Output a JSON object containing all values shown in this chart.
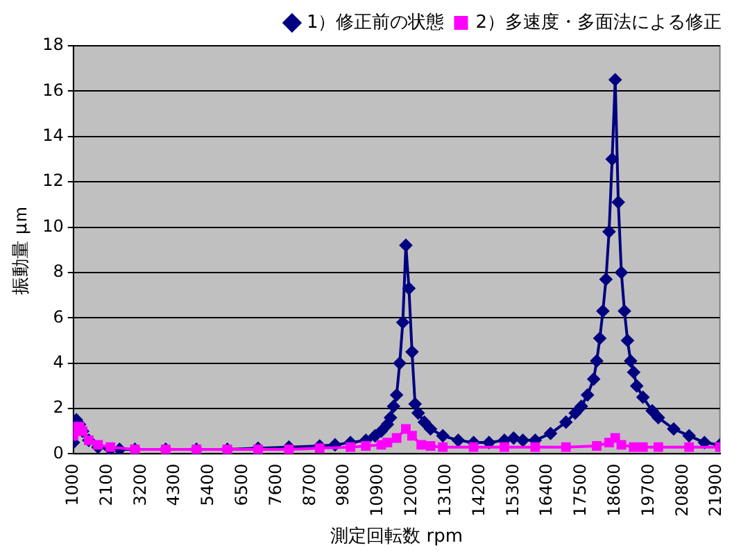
{
  "chart_data": {
    "type": "line",
    "xlabel": "測定回転数 rpm",
    "ylabel": "振動量 μｍ",
    "xlim": [
      1000,
      22000
    ],
    "xticks": [
      1000,
      2100,
      3200,
      4300,
      5400,
      6500,
      7600,
      8700,
      9800,
      10900,
      12000,
      13100,
      14200,
      15300,
      16400,
      17500,
      18600,
      19700,
      20800,
      21900
    ],
    "ylim": [
      0,
      18
    ],
    "yticks": [
      0,
      2,
      4,
      6,
      8,
      10,
      12,
      14,
      16,
      18
    ],
    "grid": "y",
    "legend": "top right",
    "series": [
      {
        "name": "1）修正前の状態",
        "color": "#000080",
        "marker": "diamond",
        "x": [
          1000,
          1100,
          1200,
          1300,
          1500,
          1800,
          2200,
          2500,
          3000,
          4000,
          5000,
          6000,
          7000,
          8000,
          9000,
          9500,
          10000,
          10500,
          10800,
          11000,
          11200,
          11300,
          11400,
          11500,
          11600,
          11700,
          11800,
          11900,
          12000,
          12100,
          12200,
          12400,
          12600,
          13000,
          13500,
          14000,
          14500,
          15000,
          15300,
          15600,
          16000,
          16500,
          17000,
          17300,
          17500,
          17700,
          17900,
          18000,
          18100,
          18200,
          18300,
          18400,
          18500,
          18600,
          18700,
          18800,
          18900,
          19000,
          19100,
          19200,
          19300,
          19500,
          19800,
          20000,
          20500,
          21000,
          21500,
          22000
        ],
        "values": [
          0.5,
          1.5,
          1.3,
          1.0,
          0.6,
          0.3,
          0.2,
          0.2,
          0.2,
          0.2,
          0.2,
          0.2,
          0.25,
          0.3,
          0.35,
          0.4,
          0.5,
          0.6,
          0.8,
          1.0,
          1.3,
          1.6,
          2.1,
          2.6,
          4.0,
          5.8,
          9.2,
          7.3,
          4.5,
          2.2,
          1.8,
          1.4,
          1.1,
          0.8,
          0.6,
          0.5,
          0.5,
          0.6,
          0.7,
          0.6,
          0.6,
          0.9,
          1.4,
          1.8,
          2.1,
          2.6,
          3.3,
          4.1,
          5.1,
          6.3,
          7.7,
          9.8,
          13.0,
          16.5,
          11.1,
          8.0,
          6.3,
          5.0,
          4.1,
          3.6,
          3.0,
          2.5,
          1.9,
          1.6,
          1.1,
          0.8,
          0.5,
          0.4
        ]
      },
      {
        "name": "2）多速度・多面法による修正",
        "color": "#ff00ff",
        "marker": "square",
        "x": [
          1000,
          1100,
          1200,
          1300,
          1500,
          1800,
          2200,
          3000,
          4000,
          5000,
          6000,
          7000,
          8000,
          9000,
          10000,
          10500,
          11000,
          11200,
          11500,
          11800,
          12000,
          12300,
          12600,
          13000,
          14000,
          15000,
          16000,
          17000,
          18000,
          18400,
          18600,
          18800,
          19200,
          19500,
          20000,
          21000,
          22000
        ],
        "values": [
          0.8,
          1.2,
          1.2,
          1.0,
          0.6,
          0.4,
          0.3,
          0.2,
          0.2,
          0.2,
          0.2,
          0.2,
          0.2,
          0.25,
          0.3,
          0.35,
          0.4,
          0.5,
          0.7,
          1.1,
          0.8,
          0.4,
          0.35,
          0.3,
          0.3,
          0.3,
          0.3,
          0.3,
          0.35,
          0.5,
          0.7,
          0.4,
          0.3,
          0.3,
          0.3,
          0.3,
          0.3
        ]
      }
    ]
  }
}
